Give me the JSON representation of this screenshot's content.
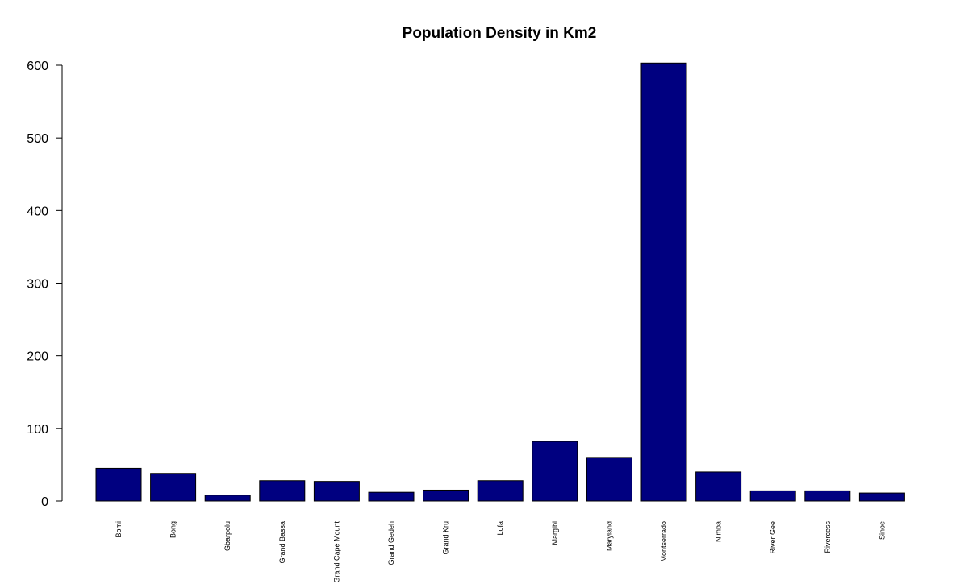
{
  "chart_data": {
    "type": "bar",
    "title": "Population Density in Km2",
    "xlabel": "",
    "ylabel": "",
    "categories": [
      "Bomi",
      "Bong",
      "Gbarpolu",
      "Grand Bassa",
      "Grand Cape Mount",
      "Grand Gedeh",
      "Grand Kru",
      "Lofa",
      "Margibi",
      "Maryland",
      "Montserrado",
      "Nimba",
      "River Gee",
      "Rivercess",
      "Sinoe"
    ],
    "values": [
      45,
      38,
      8,
      28,
      27,
      12,
      15,
      28,
      82,
      60,
      603,
      40,
      14,
      14,
      11
    ],
    "ylim": [
      0,
      600
    ],
    "yticks": [
      "0",
      "100",
      "200",
      "300",
      "400",
      "500",
      "600"
    ],
    "bar_color": "#000080",
    "grid": false,
    "legend": "none"
  }
}
